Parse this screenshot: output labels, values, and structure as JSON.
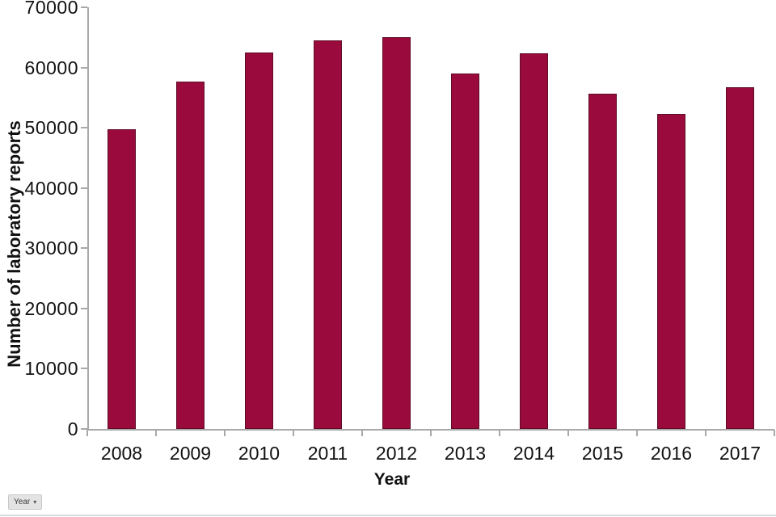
{
  "chart_data": {
    "type": "bar",
    "title": "",
    "xlabel": "Year",
    "ylabel": "Number of laboratory reports",
    "categories": [
      "2008",
      "2009",
      "2010",
      "2011",
      "2012",
      "2013",
      "2014",
      "2015",
      "2016",
      "2017"
    ],
    "values": [
      49800,
      57600,
      62500,
      64500,
      65000,
      59000,
      62400,
      55700,
      52300,
      56700
    ],
    "ylim": [
      0,
      70000
    ],
    "yticks": [
      0,
      10000,
      20000,
      30000,
      40000,
      50000,
      60000,
      70000
    ],
    "grid": false,
    "legend_position": "none",
    "bar_color": "#9b0a3c",
    "bar_border_color": "#5e0d26",
    "axis_color": "#a9a9a9"
  },
  "filter_chip": {
    "label": "Year",
    "arrow": "▾"
  }
}
